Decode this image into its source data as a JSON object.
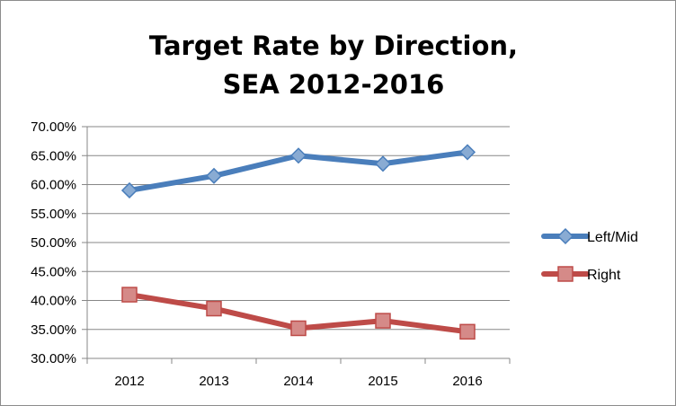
{
  "chart_data": {
    "type": "line",
    "title": "Target Rate by Direction,",
    "subtitle": "SEA 2012-2016",
    "xlabel": "",
    "ylabel": "",
    "categories": [
      "2012",
      "2013",
      "2014",
      "2015",
      "2016"
    ],
    "ylim": [
      0.3,
      0.7
    ],
    "ytick_values": [
      0.3,
      0.35,
      0.4,
      0.45,
      0.5,
      0.55,
      0.6,
      0.65,
      0.7
    ],
    "ytick_labels": [
      "30.00%",
      "35.00%",
      "40.00%",
      "45.00%",
      "50.00%",
      "55.00%",
      "60.00%",
      "65.00%",
      "70.00%"
    ],
    "grid": true,
    "legend_position": "right",
    "series": [
      {
        "name": "Left/Mid",
        "values": [
          0.59,
          0.615,
          0.65,
          0.636,
          0.656
        ],
        "color": "#4a7ebb",
        "marker": "diamond"
      },
      {
        "name": "Right",
        "values": [
          0.41,
          0.386,
          0.352,
          0.365,
          0.346
        ],
        "color": "#be4b48",
        "marker": "square"
      }
    ]
  }
}
